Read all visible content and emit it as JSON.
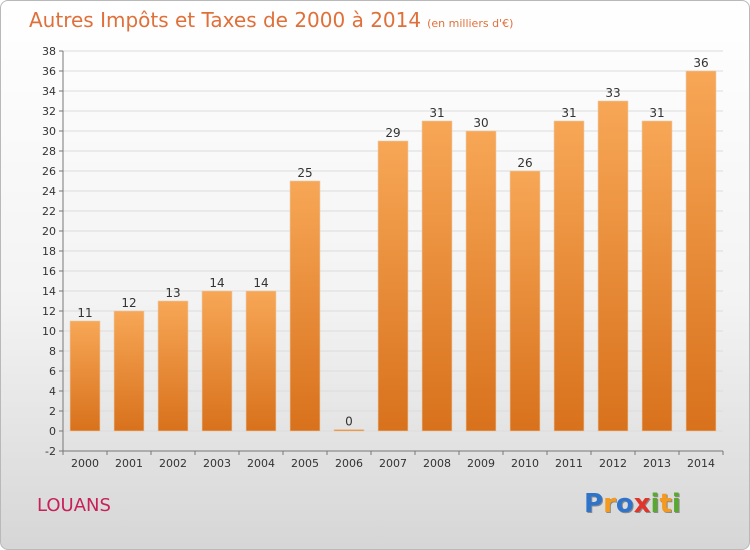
{
  "title": "Autres Impôts et Taxes de 2000 à 2014",
  "unit": "(en milliers d'€)",
  "commune": "LOUANS",
  "logo": {
    "letters": [
      {
        "ch": "P",
        "color": "#2f74c9"
      },
      {
        "ch": "r",
        "color": "#f39a1f"
      },
      {
        "ch": "o",
        "color": "#2f74c9"
      },
      {
        "ch": "x",
        "color": "#e0352b"
      },
      {
        "ch": "i",
        "color": "#5aa832"
      },
      {
        "ch": "t",
        "color": "#f39a1f"
      },
      {
        "ch": "i",
        "color": "#5aa832"
      }
    ]
  },
  "chart_data": {
    "type": "bar",
    "categories": [
      "2000",
      "2001",
      "2002",
      "2003",
      "2004",
      "2005",
      "2006",
      "2007",
      "2008",
      "2009",
      "2010",
      "2011",
      "2012",
      "2013",
      "2014"
    ],
    "values": [
      11,
      12,
      13,
      14,
      14,
      25,
      0,
      29,
      31,
      30,
      26,
      31,
      33,
      31,
      36
    ],
    "ylim": [
      -2,
      38
    ],
    "ytick_step": 2,
    "grid": true,
    "bar_color_top": "#f7a756",
    "bar_color_bottom": "#d8711c"
  }
}
